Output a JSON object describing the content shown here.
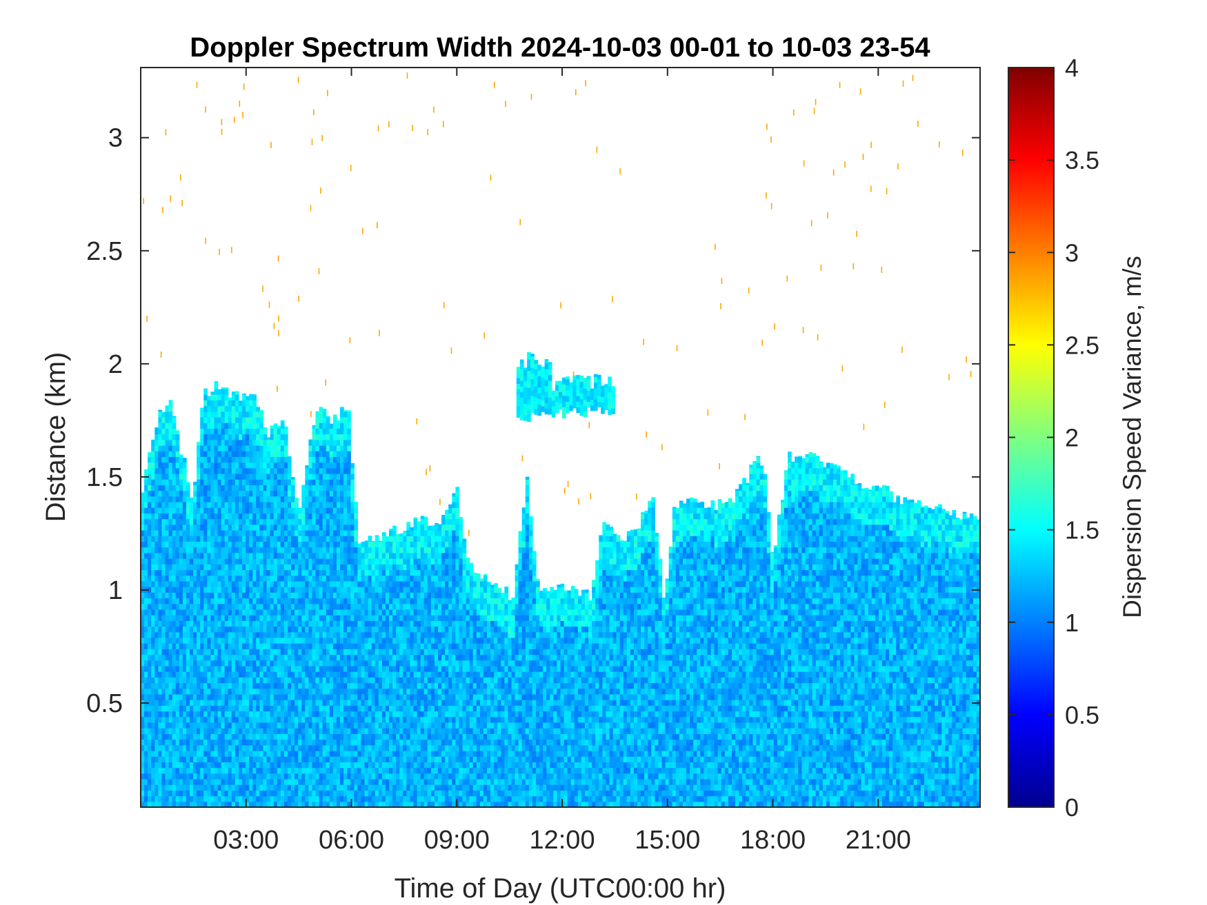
{
  "chart_data": {
    "type": "heatmap",
    "title": "Doppler Spectrum Width 2024-10-03 00-01 to 10-03 23-54",
    "xlabel": "Time of Day (UTC00:00 hr)",
    "ylabel": "Distance (km)",
    "xlim": [
      0,
      23.9
    ],
    "ylim": [
      0.04,
      3.31
    ],
    "xticks": [
      {
        "value": 3,
        "label": "03:00"
      },
      {
        "value": 6,
        "label": "06:00"
      },
      {
        "value": 9,
        "label": "09:00"
      },
      {
        "value": 12,
        "label": "12:00"
      },
      {
        "value": 15,
        "label": "15:00"
      },
      {
        "value": 18,
        "label": "18:00"
      },
      {
        "value": 21,
        "label": "21:00"
      }
    ],
    "yticks": [
      {
        "value": 0.5,
        "label": "0.5"
      },
      {
        "value": 1,
        "label": "1"
      },
      {
        "value": 1.5,
        "label": "1.5"
      },
      {
        "value": 2,
        "label": "2"
      },
      {
        "value": 2.5,
        "label": "2.5"
      },
      {
        "value": 3,
        "label": "3"
      }
    ],
    "colorbar": {
      "label": "Dispersion Speed Variance, m/s",
      "range": [
        0,
        4
      ],
      "colormap": "jet",
      "ticks": [
        {
          "value": 0,
          "label": "0"
        },
        {
          "value": 0.5,
          "label": "0.5"
        },
        {
          "value": 1,
          "label": "1"
        },
        {
          "value": 1.5,
          "label": "1.5"
        },
        {
          "value": 2,
          "label": "2"
        },
        {
          "value": 2.5,
          "label": "2.5"
        },
        {
          "value": 3,
          "label": "3"
        },
        {
          "value": 3.5,
          "label": "3.5"
        },
        {
          "value": 4,
          "label": "4"
        }
      ]
    },
    "signal_top_km": [
      {
        "t": 0.0,
        "top": 1.38
      },
      {
        "t": 0.4,
        "top": 1.72
      },
      {
        "t": 0.8,
        "top": 1.85
      },
      {
        "t": 1.5,
        "top": 1.4
      },
      {
        "t": 1.8,
        "top": 1.88
      },
      {
        "t": 2.3,
        "top": 1.9
      },
      {
        "t": 2.6,
        "top": 1.85
      },
      {
        "t": 3.2,
        "top": 1.88
      },
      {
        "t": 3.6,
        "top": 1.7
      },
      {
        "t": 4.1,
        "top": 1.75
      },
      {
        "t": 4.5,
        "top": 1.35
      },
      {
        "t": 5.0,
        "top": 1.82
      },
      {
        "t": 5.5,
        "top": 1.75
      },
      {
        "t": 5.9,
        "top": 1.82
      },
      {
        "t": 6.2,
        "top": 1.22
      },
      {
        "t": 7.0,
        "top": 1.25
      },
      {
        "t": 7.8,
        "top": 1.3
      },
      {
        "t": 8.6,
        "top": 1.3
      },
      {
        "t": 9.0,
        "top": 1.45
      },
      {
        "t": 9.3,
        "top": 1.12
      },
      {
        "t": 10.0,
        "top": 1.05
      },
      {
        "t": 10.6,
        "top": 0.97
      },
      {
        "t": 11.0,
        "top": 1.5
      },
      {
        "t": 11.3,
        "top": 1.02
      },
      {
        "t": 12.0,
        "top": 1.03
      },
      {
        "t": 12.8,
        "top": 0.97
      },
      {
        "t": 13.2,
        "top": 1.3
      },
      {
        "t": 13.7,
        "top": 1.2
      },
      {
        "t": 14.2,
        "top": 1.3
      },
      {
        "t": 14.6,
        "top": 1.4
      },
      {
        "t": 14.9,
        "top": 0.95
      },
      {
        "t": 15.2,
        "top": 1.38
      },
      {
        "t": 16.0,
        "top": 1.38
      },
      {
        "t": 16.8,
        "top": 1.38
      },
      {
        "t": 17.3,
        "top": 1.5
      },
      {
        "t": 17.6,
        "top": 1.6
      },
      {
        "t": 17.8,
        "top": 1.5
      },
      {
        "t": 18.0,
        "top": 1.1
      },
      {
        "t": 18.4,
        "top": 1.58
      },
      {
        "t": 19.0,
        "top": 1.6
      },
      {
        "t": 19.8,
        "top": 1.55
      },
      {
        "t": 20.5,
        "top": 1.48
      },
      {
        "t": 21.0,
        "top": 1.45
      },
      {
        "t": 21.7,
        "top": 1.4
      },
      {
        "t": 22.5,
        "top": 1.38
      },
      {
        "t": 23.2,
        "top": 1.35
      },
      {
        "t": 23.9,
        "top": 1.3
      }
    ],
    "elevated_layers": [
      {
        "t_start": 10.7,
        "t_end": 11.7,
        "bottom_km": 1.74,
        "top_km": 2.06
      },
      {
        "t_start": 11.7,
        "t_end": 13.5,
        "bottom_km": 1.76,
        "top_km": 1.96
      }
    ]
  }
}
